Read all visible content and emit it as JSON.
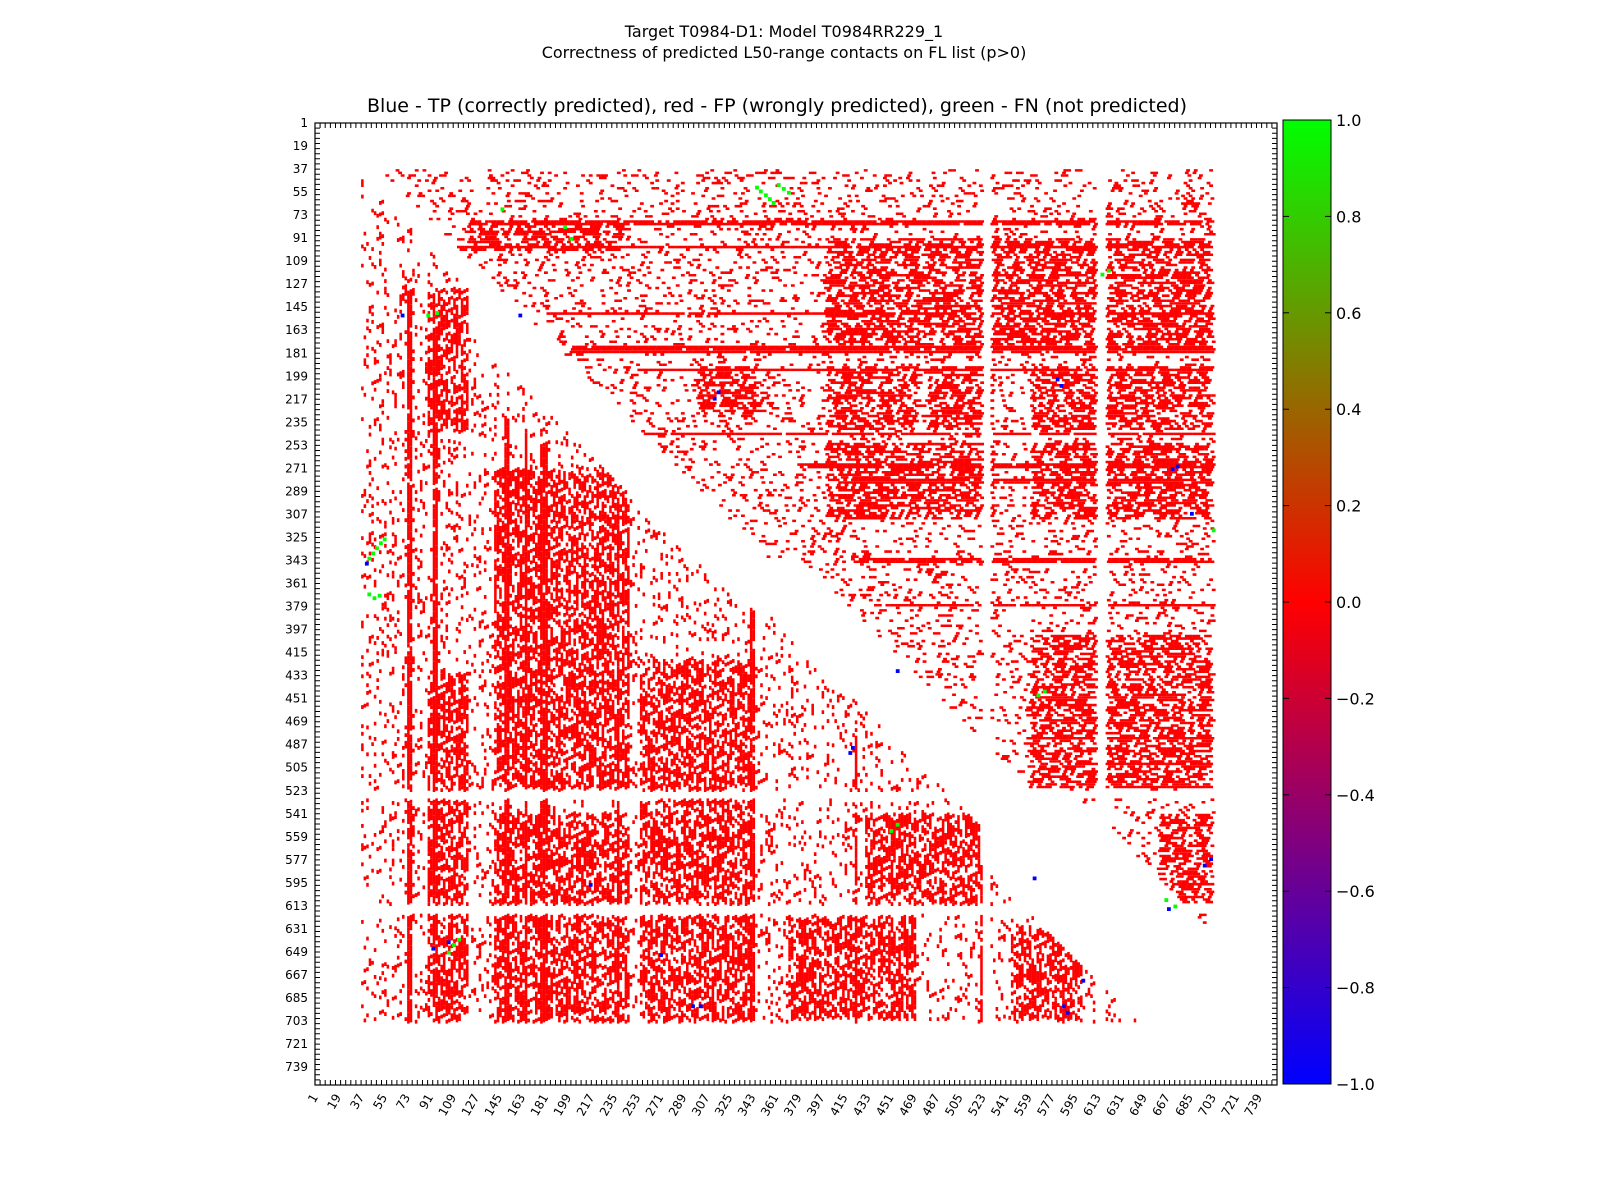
{
  "figure": {
    "title_line1": "Target T0984-D1: Model T0984RR229_1",
    "title_line2": "Correctness of predicted L50-range contacts on FL list (p>0)",
    "axes_title": "Blue - TP (correctly predicted), red - FP (wrongly predicted), green - FN (not predicted)"
  },
  "chart_data": {
    "type": "heatmap",
    "title": "Blue - TP (correctly predicted), red - FP (wrongly predicted), green - FN (not predicted)",
    "xlim": [
      1,
      752
    ],
    "ylim": [
      752,
      1
    ],
    "x_ticks": [
      1,
      19,
      37,
      55,
      73,
      91,
      109,
      127,
      145,
      163,
      181,
      199,
      217,
      235,
      253,
      271,
      289,
      307,
      325,
      343,
      361,
      379,
      397,
      415,
      433,
      451,
      469,
      487,
      505,
      523,
      541,
      559,
      577,
      595,
      613,
      631,
      649,
      667,
      685,
      703,
      721,
      739
    ],
    "y_ticks": [
      1,
      19,
      37,
      55,
      73,
      91,
      109,
      127,
      145,
      163,
      181,
      199,
      217,
      235,
      253,
      271,
      289,
      307,
      325,
      343,
      361,
      379,
      397,
      415,
      433,
      451,
      469,
      487,
      505,
      523,
      541,
      559,
      577,
      595,
      613,
      631,
      649,
      667,
      685,
      703,
      721,
      739
    ],
    "x_tick_labels": [
      "1",
      "19",
      "37",
      "55",
      "73",
      "91",
      "109",
      "127",
      "145",
      "163",
      "181",
      "199",
      "217",
      "235",
      "253",
      "271",
      "289",
      "307",
      "325",
      "343",
      "361",
      "379",
      "397",
      "415",
      "433",
      "451",
      "469",
      "487",
      "505",
      "523",
      "541",
      "559",
      "577",
      "595",
      "613",
      "631",
      "649",
      "667",
      "685",
      "703",
      "721",
      "739"
    ],
    "y_tick_labels": [
      "1",
      "19",
      "37",
      "55",
      "73",
      "91",
      "109",
      "127",
      "145",
      "163",
      "181",
      "199",
      "217",
      "235",
      "253",
      "271",
      "289",
      "307",
      "325",
      "343",
      "361",
      "379",
      "397",
      "415",
      "433",
      "451",
      "469",
      "487",
      "505",
      "523",
      "541",
      "559",
      "577",
      "595",
      "613",
      "631",
      "649",
      "667",
      "685",
      "703",
      "721",
      "739"
    ],
    "colorbar": {
      "min": -1.0,
      "max": 1.0,
      "ticks": [
        1.0,
        0.8,
        0.6,
        0.4,
        0.2,
        0.0,
        -0.2,
        -0.4,
        -0.6,
        -0.8,
        -1.0
      ],
      "tick_labels": [
        "1.0",
        "0.8",
        "0.6",
        "0.4",
        "0.2",
        "0.0",
        "−0.2",
        "−0.4",
        "−0.6",
        "−0.8",
        "−1.0"
      ],
      "colors": [
        "#0000ff",
        "#ff0000",
        "#00ff00"
      ]
    },
    "categories": [
      {
        "label": "TP",
        "value": -1,
        "color": "#0000ff"
      },
      {
        "label": "FP",
        "value": 0,
        "color": "#ff0000"
      },
      {
        "label": "FN",
        "value": 1,
        "color": "#00ff00"
      }
    ],
    "region_extent": {
      "min_residue": 37,
      "max_residue": 702
    },
    "excluded_residue_bands": [
      [
        522,
        528
      ],
      [
        611,
        618
      ]
    ],
    "fp_upper_rows": [
      {
        "range": [
          77,
          79
        ],
        "from": 120,
        "to": 702
      },
      {
        "range": [
          96,
          98
        ],
        "from": 80,
        "to": 702
      },
      {
        "range": [
          148,
          150
        ],
        "from": 180,
        "to": 702
      },
      {
        "range": [
          175,
          179
        ],
        "from": 200,
        "to": 702
      },
      {
        "range": [
          192,
          194
        ],
        "from": 250,
        "to": 702
      },
      {
        "range": [
          242,
          244
        ],
        "from": 250,
        "to": 702
      },
      {
        "range": [
          267,
          269
        ],
        "from": 380,
        "to": 702
      },
      {
        "range": [
          279,
          282
        ],
        "from": 420,
        "to": 702
      },
      {
        "range": [
          340,
          343
        ],
        "from": 420,
        "to": 702
      },
      {
        "range": [
          376,
          378
        ],
        "from": 440,
        "to": 702
      },
      {
        "range": [
          480,
          482
        ],
        "from": 560,
        "to": 702
      },
      {
        "range": [
          500,
          502
        ],
        "from": 600,
        "to": 702
      },
      {
        "range": [
          518,
          520
        ],
        "from": 620,
        "to": 702
      }
    ],
    "fp_lower_columns": [
      {
        "range": [
          73,
          76
        ],
        "from": 130,
        "to": 702
      },
      {
        "range": [
          93,
          95
        ],
        "from": 160,
        "to": 702
      },
      {
        "range": [
          148,
          152
        ],
        "from": 230,
        "to": 702
      },
      {
        "range": [
          164,
          166
        ],
        "from": 240,
        "to": 702
      },
      {
        "range": [
          176,
          181
        ],
        "from": 250,
        "to": 702
      },
      {
        "range": [
          236,
          238
        ],
        "from": 300,
        "to": 702
      },
      {
        "range": [
          340,
          344
        ],
        "from": 380,
        "to": 702
      },
      {
        "range": [
          422,
          424
        ],
        "from": 480,
        "to": 702
      },
      {
        "range": [
          520,
          522
        ],
        "from": 560,
        "to": 702
      }
    ],
    "fp_blocks": [
      {
        "x": [
          88,
          120
        ],
        "y": [
          130,
          240
        ]
      },
      {
        "x": [
          88,
          120
        ],
        "y": [
          430,
          702
        ]
      },
      {
        "x": [
          140,
          245
        ],
        "y": [
          270,
          520
        ]
      },
      {
        "x": [
          140,
          245
        ],
        "y": [
          540,
          702
        ]
      },
      {
        "x": [
          255,
          340
        ],
        "y": [
          420,
          702
        ]
      },
      {
        "x": [
          300,
          345
        ],
        "y": [
          190,
          230
        ]
      },
      {
        "x": [
          400,
          470
        ],
        "y": [
          190,
          240
        ]
      },
      {
        "x": [
          480,
          530
        ],
        "y": [
          190,
          240
        ]
      },
      {
        "x": [
          400,
          530
        ],
        "y": [
          250,
          310
        ]
      },
      {
        "x": [
          560,
          700
        ],
        "y": [
          190,
          240
        ]
      },
      {
        "x": [
          560,
          700
        ],
        "y": [
          250,
          310
        ]
      },
      {
        "x": [
          400,
          700
        ],
        "y": [
          90,
          180
        ]
      },
      {
        "x": [
          120,
          240
        ],
        "y": [
          80,
          100
        ]
      },
      {
        "x": [
          660,
          700
        ],
        "y": [
          540,
          610
        ]
      },
      {
        "x": [
          545,
          600
        ],
        "y": [
          630,
          700
        ]
      },
      {
        "x": [
          430,
          530
        ],
        "y": [
          540,
          610
        ]
      },
      {
        "x": [
          370,
          470
        ],
        "y": [
          620,
          700
        ]
      },
      {
        "x": [
          560,
          700
        ],
        "y": [
          400,
          520
        ]
      }
    ],
    "tp_points": [
      [
        40,
        344
      ],
      [
        68,
        150
      ],
      [
        160,
        150
      ],
      [
        215,
        595
      ],
      [
        92,
        645
      ],
      [
        104,
        640
      ],
      [
        270,
        650
      ],
      [
        295,
        690
      ],
      [
        301,
        690
      ],
      [
        315,
        210
      ],
      [
        312,
        215
      ],
      [
        418,
        492
      ],
      [
        420,
        488
      ],
      [
        455,
        428
      ],
      [
        670,
        270
      ],
      [
        674,
        268
      ],
      [
        685,
        305
      ],
      [
        700,
        575
      ],
      [
        695,
        580
      ],
      [
        600,
        670
      ],
      [
        585,
        690
      ],
      [
        588,
        695
      ],
      [
        667,
        614
      ],
      [
        562,
        590
      ],
      [
        580,
        200
      ],
      [
        583,
        205
      ]
    ],
    "fn_points": [
      [
        345,
        50
      ],
      [
        348,
        53
      ],
      [
        352,
        56
      ],
      [
        355,
        59
      ],
      [
        358,
        62
      ],
      [
        362,
        48
      ],
      [
        366,
        51
      ],
      [
        370,
        54
      ],
      [
        195,
        81
      ],
      [
        146,
        67
      ],
      [
        200,
        90
      ],
      [
        88,
        150
      ],
      [
        95,
        148
      ],
      [
        42,
        340
      ],
      [
        45,
        336
      ],
      [
        48,
        332
      ],
      [
        51,
        328
      ],
      [
        54,
        325
      ],
      [
        42,
        368
      ],
      [
        46,
        371
      ],
      [
        50,
        369
      ],
      [
        104,
        648
      ],
      [
        108,
        642
      ],
      [
        112,
        638
      ],
      [
        620,
        115
      ],
      [
        615,
        118
      ],
      [
        565,
        447
      ],
      [
        570,
        444
      ],
      [
        450,
        553
      ],
      [
        455,
        548
      ],
      [
        665,
        607
      ],
      [
        672,
        612
      ],
      [
        702,
        318
      ]
    ]
  }
}
